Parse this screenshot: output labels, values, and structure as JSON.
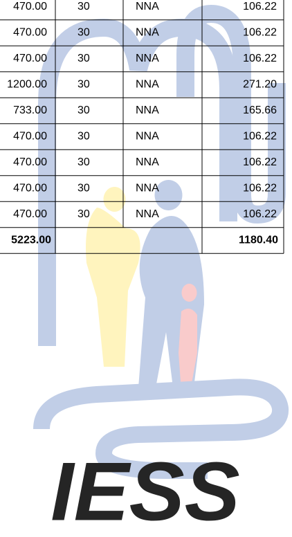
{
  "table": {
    "rows": [
      [
        "470.00",
        "30",
        "NNA",
        "106.22"
      ],
      [
        "470.00",
        "30",
        "NNA",
        "106.22"
      ],
      [
        "470.00",
        "30",
        "NNA",
        "106.22"
      ],
      [
        "1200.00",
        "30",
        "NNA",
        "271.20"
      ],
      [
        "733.00",
        "30",
        "NNA",
        "165.66"
      ],
      [
        "470.00",
        "30",
        "NNA",
        "106.22"
      ],
      [
        "470.00",
        "30",
        "NNA",
        "106.22"
      ],
      [
        "470.00",
        "30",
        "NNA",
        "106.22"
      ],
      [
        "470.00",
        "30",
        "NNA",
        "106.22"
      ]
    ],
    "total": [
      "5223.00",
      "1180.40"
    ]
  },
  "watermark": "IESS"
}
